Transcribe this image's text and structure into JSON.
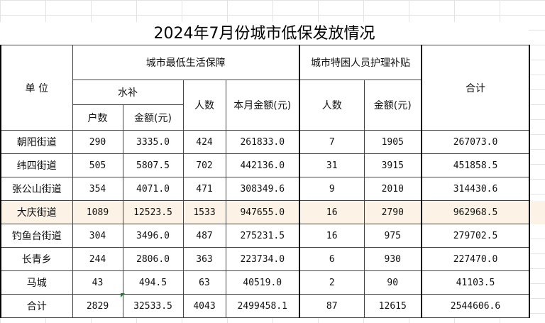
{
  "title": "2024年7月份城市低保发放情况",
  "headers": {
    "unit": "单  位",
    "min_living": "城市最低生活保障",
    "water_subsidy": "水补",
    "households": "户数",
    "amount_yuan": "金额(元)",
    "people": "人数",
    "monthly_amount": "本月金额(元)",
    "special_care": "城市特困人员护理补贴",
    "care_people": "人数",
    "care_amount": "金额(元)",
    "total": "合计"
  },
  "rows": [
    {
      "unit": "朝阳街道",
      "households": "290",
      "water_amount": "3335.0",
      "people": "424",
      "monthly": "261833.0",
      "care_people": "7",
      "care_amount": "1905",
      "total": "267073.0"
    },
    {
      "unit": "纬四街道",
      "households": "505",
      "water_amount": "5807.5",
      "people": "702",
      "monthly": "442136.0",
      "care_people": "31",
      "care_amount": "3915",
      "total": "451858.5"
    },
    {
      "unit": "张公山街道",
      "households": "354",
      "water_amount": "4071.0",
      "people": "471",
      "monthly": "308349.6",
      "care_people": "9",
      "care_amount": "2010",
      "total": "314430.6"
    },
    {
      "unit": "大庆街道",
      "households": "1089",
      "water_amount": "12523.5",
      "people": "1533",
      "monthly": "947655.0",
      "care_people": "16",
      "care_amount": "2790",
      "total": "962968.5"
    },
    {
      "unit": "钓鱼台街道",
      "households": "304",
      "water_amount": "3496.0",
      "people": "487",
      "monthly": "275231.5",
      "care_people": "16",
      "care_amount": "975",
      "total": "279702.5"
    },
    {
      "unit": "长青乡",
      "households": "244",
      "water_amount": "2806.0",
      "people": "363",
      "monthly": "223734.0",
      "care_people": "6",
      "care_amount": "930",
      "total": "227470.0"
    },
    {
      "unit": "马城",
      "households": "43",
      "water_amount": "494.5",
      "people": "63",
      "monthly": "40519.0",
      "care_people": "2",
      "care_amount": "90",
      "total": "41103.5"
    },
    {
      "unit": "合计",
      "households": "2829",
      "water_amount": "32533.5",
      "people": "4043",
      "monthly": "2499458.1",
      "care_people": "87",
      "care_amount": "12615",
      "total": "2544606.6"
    }
  ],
  "highlight_color": "#fcf3e6"
}
